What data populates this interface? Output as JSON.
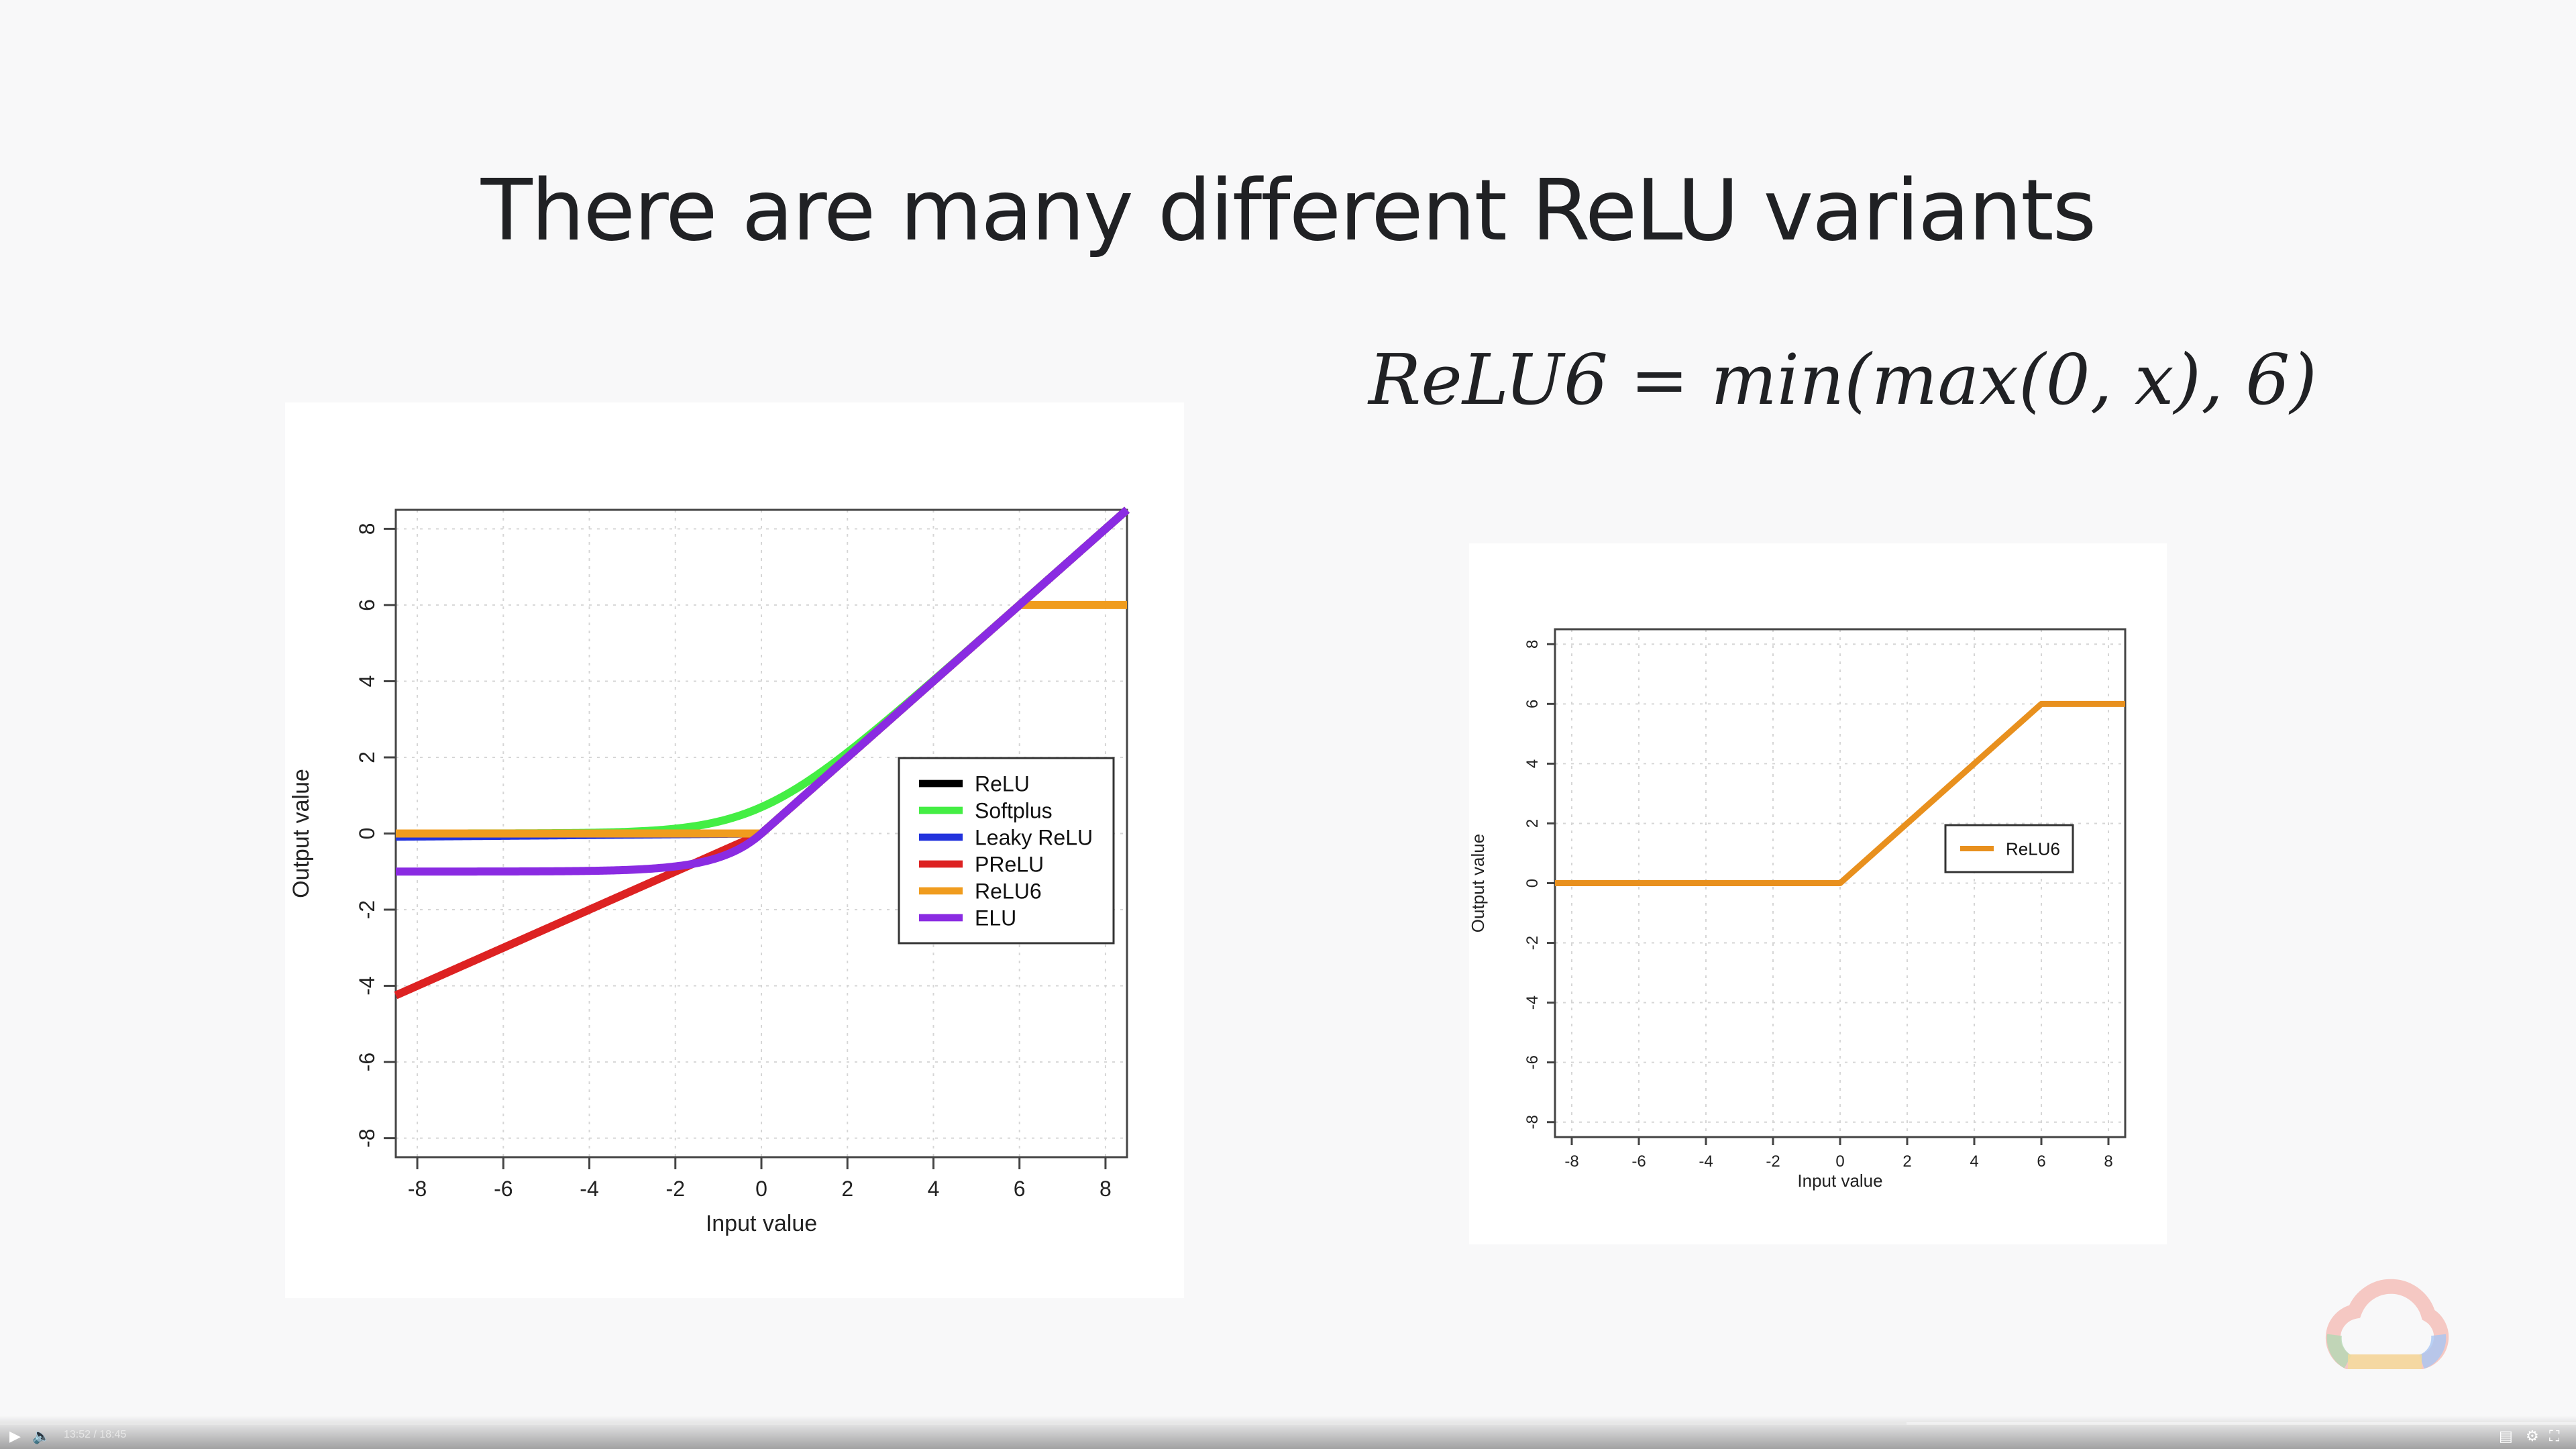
{
  "slide": {
    "title": "There are many different ReLU variants",
    "formula_italic_left": "ReLU6",
    "formula_mid": " = ",
    "formula_italic_right": "min(max(0, x), 6)"
  },
  "chart_data": [
    {
      "type": "line",
      "xlabel": "Input value",
      "ylabel": "Output value",
      "xlim": [
        -8.5,
        8.5
      ],
      "ylim": [
        -8.5,
        8.5
      ],
      "xticks": [
        -8,
        -6,
        -4,
        -2,
        0,
        2,
        4,
        6,
        8
      ],
      "yticks": [
        -8,
        -6,
        -4,
        -2,
        0,
        2,
        4,
        6,
        8
      ],
      "grid": true,
      "legend_position": "right-center",
      "series": [
        {
          "name": "ReLU",
          "color": "#000000",
          "function": "max(0, x)"
        },
        {
          "name": "Softplus",
          "color": "#44ee44",
          "function": "log(1 + exp(x))"
        },
        {
          "name": "Leaky ReLU",
          "color": "#2233dd",
          "function": "x if x > 0 else 0.01 * x"
        },
        {
          "name": "PReLU",
          "color": "#dd2222",
          "function": "x if x > 0 else 0.5 * x"
        },
        {
          "name": "ReLU6",
          "color": "#f09c1e",
          "function": "min(max(0, x), 6)"
        },
        {
          "name": "ELU",
          "color": "#8a2be2",
          "function": "x if x > 0 else exp(x) - 1"
        }
      ]
    },
    {
      "type": "line",
      "xlabel": "Input value",
      "ylabel": "Output value",
      "xlim": [
        -8.5,
        8.5
      ],
      "ylim": [
        -8.5,
        8.5
      ],
      "xticks": [
        -8,
        -6,
        -4,
        -2,
        0,
        2,
        4,
        6,
        8
      ],
      "yticks": [
        -8,
        -6,
        -4,
        -2,
        0,
        2,
        4,
        6,
        8
      ],
      "grid": true,
      "legend_position": "right-center",
      "series": [
        {
          "name": "ReLU6",
          "color": "#e8901e",
          "x": [
            -8.5,
            0,
            6,
            8.5
          ],
          "y": [
            0,
            0,
            6,
            6
          ]
        }
      ]
    }
  ],
  "player": {
    "time": "13:52 / 18:45",
    "progress": 0.74
  }
}
